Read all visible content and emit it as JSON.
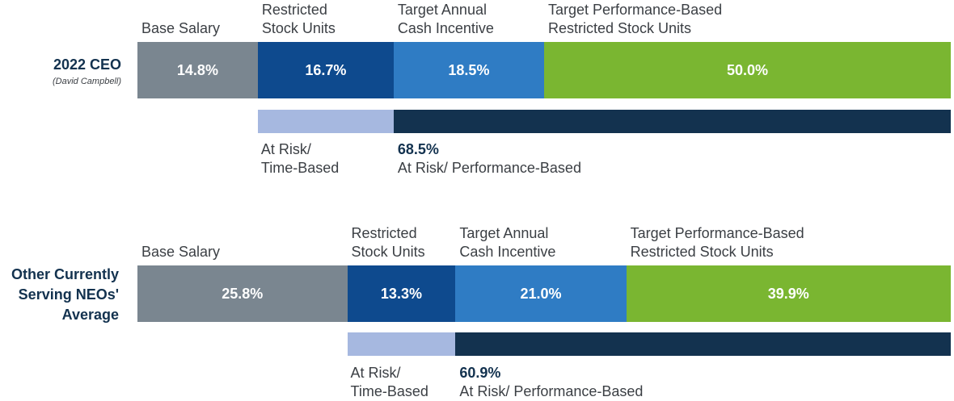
{
  "chart_data": [
    {
      "type": "bar",
      "orientation": "horizontal-stacked",
      "row_title": "2022 CEO",
      "row_subtitle": "(David Campbell)",
      "categories": [
        "Base Salary",
        "Restricted\nStock Units",
        "Target Annual\nCash Incentive",
        "Target Performance-Based\nRestricted Stock Units"
      ],
      "values": [
        14.8,
        16.7,
        18.5,
        50.0
      ],
      "value_labels": [
        "14.8%",
        "16.7%",
        "18.5%",
        "50.0%"
      ],
      "risk_breakdown": {
        "time_based_label": "At Risk/\nTime-Based",
        "time_based_value": 16.7,
        "performance_based_value": 68.5,
        "performance_based_pct_label": "68.5%",
        "performance_based_label": "At Risk/ Performance-Based"
      }
    },
    {
      "type": "bar",
      "orientation": "horizontal-stacked",
      "row_title": "Other Currently\nServing NEOs'\nAverage",
      "row_subtitle": "",
      "categories": [
        "Base Salary",
        "Restricted\nStock Units",
        "Target Annual\nCash Incentive",
        "Target Performance-Based\nRestricted Stock Units"
      ],
      "values": [
        25.8,
        13.3,
        21.0,
        39.9
      ],
      "value_labels": [
        "25.8%",
        "13.3%",
        "21.0%",
        "39.9%"
      ],
      "risk_breakdown": {
        "time_based_label": "At Risk/\nTime-Based",
        "time_based_value": 13.3,
        "performance_based_value": 60.9,
        "performance_based_pct_label": "60.9%",
        "performance_based_label": "At Risk/ Performance-Based"
      }
    }
  ],
  "colors": {
    "segments": [
      "#7a8690",
      "#0e4a8e",
      "#2f7cc4",
      "#7ab631"
    ],
    "time_based": "#a6b8e0",
    "performance_based": "#13324f"
  }
}
